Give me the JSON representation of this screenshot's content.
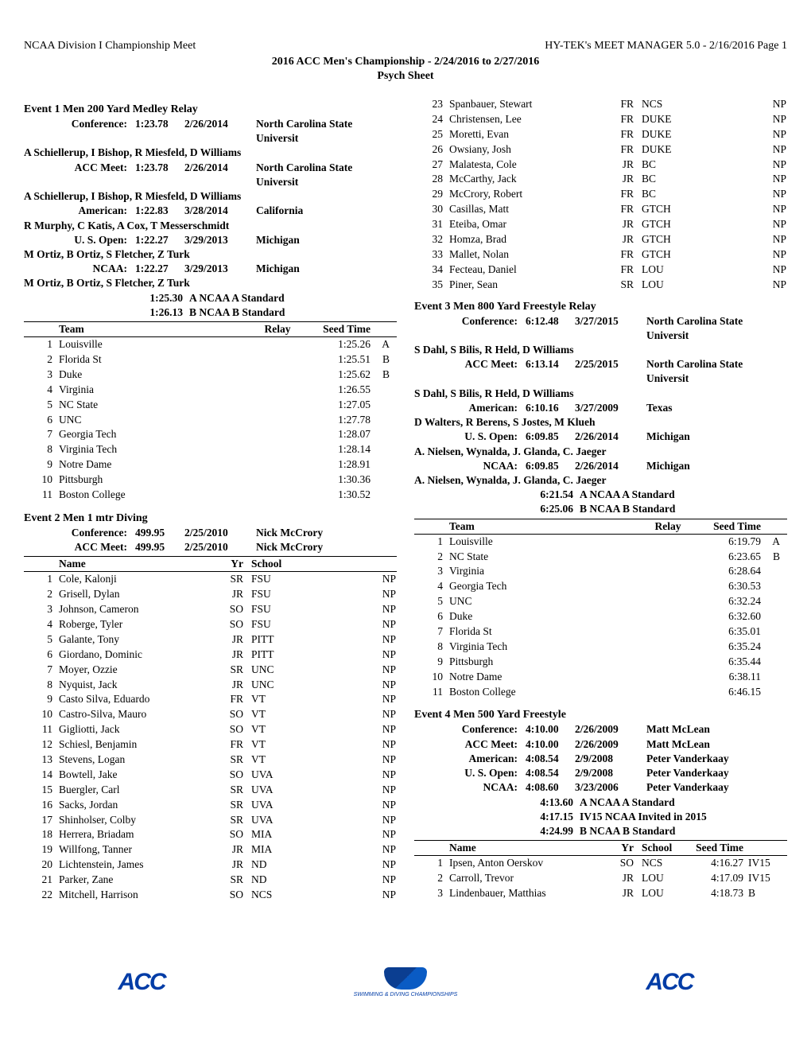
{
  "header": {
    "left": "NCAA Division I Championship Meet",
    "right": "HY-TEK's MEET MANAGER 5.0 - 2/16/2016  Page 1",
    "center": "2016 ACC Men's Championship - 2/24/2016 to 2/27/2016",
    "sub": "Psych Sheet"
  },
  "event1": {
    "title": "Event  1   Men 200 Yard Medley Relay",
    "records": [
      {
        "label": "Conference:",
        "time": "1:23.78",
        "date": "2/26/2014",
        "holder": "North Carolina State Universit",
        "swimmers": "A Schiellerup, I Bishop, R Miesfeld, D Williams"
      },
      {
        "label": "ACC Meet:",
        "time": "1:23.78",
        "date": "2/26/2014",
        "holder": "North Carolina State Universit",
        "swimmers": "A Schiellerup, I Bishop, R Miesfeld, D Williams"
      },
      {
        "label": "American:",
        "time": "1:22.83",
        "date": "3/28/2014",
        "holder": "California",
        "swimmers": "R Murphy, C Katis, A Cox, T Messerschmidt"
      },
      {
        "label": "U. S. Open:",
        "time": "1:22.27",
        "date": "3/29/2013",
        "holder": "Michigan",
        "swimmers": "M Ortiz, B Ortiz, S Fletcher, Z Turk"
      },
      {
        "label": "NCAA:",
        "time": "1:22.27",
        "date": "3/29/2013",
        "holder": "Michigan",
        "swimmers": "M Ortiz, B Ortiz, S Fletcher, Z Turk"
      }
    ],
    "standards": [
      {
        "time": "1:25.30",
        "label": "A NCAA A Standard"
      },
      {
        "time": "1:26.13",
        "label": "B NCAA B Standard"
      }
    ],
    "thead": {
      "team": "Team",
      "relay": "Relay",
      "seed": "Seed Time"
    },
    "rows": [
      {
        "pl": "1",
        "team": "Louisville",
        "seed": "1:25.26",
        "flag": "A"
      },
      {
        "pl": "2",
        "team": "Florida St",
        "seed": "1:25.51",
        "flag": "B"
      },
      {
        "pl": "3",
        "team": "Duke",
        "seed": "1:25.62",
        "flag": "B"
      },
      {
        "pl": "4",
        "team": "Virginia",
        "seed": "1:26.55",
        "flag": ""
      },
      {
        "pl": "5",
        "team": "NC State",
        "seed": "1:27.05",
        "flag": ""
      },
      {
        "pl": "6",
        "team": "UNC",
        "seed": "1:27.78",
        "flag": ""
      },
      {
        "pl": "7",
        "team": "Georgia Tech",
        "seed": "1:28.07",
        "flag": ""
      },
      {
        "pl": "8",
        "team": "Virginia Tech",
        "seed": "1:28.14",
        "flag": ""
      },
      {
        "pl": "9",
        "team": "Notre Dame",
        "seed": "1:28.91",
        "flag": ""
      },
      {
        "pl": "10",
        "team": "Pittsburgh",
        "seed": "1:30.36",
        "flag": ""
      },
      {
        "pl": "11",
        "team": "Boston College",
        "seed": "1:30.52",
        "flag": ""
      }
    ]
  },
  "event2": {
    "title": "Event  2   Men 1 mtr Diving",
    "records": [
      {
        "label": "Conference:",
        "time": "499.95",
        "date": "2/25/2010",
        "holder": "Nick McCrory"
      },
      {
        "label": "ACC Meet:",
        "time": "499.95",
        "date": "2/25/2010",
        "holder": "Nick McCrory"
      }
    ],
    "thead": {
      "name": "Name",
      "yr": "Yr",
      "school": "School",
      "seed": ""
    },
    "rows": [
      {
        "pl": "1",
        "name": "Cole, Kalonji",
        "yr": "SR",
        "school": "FSU",
        "seed": "NP"
      },
      {
        "pl": "2",
        "name": "Grisell, Dylan",
        "yr": "JR",
        "school": "FSU",
        "seed": "NP"
      },
      {
        "pl": "3",
        "name": "Johnson, Cameron",
        "yr": "SO",
        "school": "FSU",
        "seed": "NP"
      },
      {
        "pl": "4",
        "name": "Roberge, Tyler",
        "yr": "SO",
        "school": "FSU",
        "seed": "NP"
      },
      {
        "pl": "5",
        "name": "Galante, Tony",
        "yr": "JR",
        "school": "PITT",
        "seed": "NP"
      },
      {
        "pl": "6",
        "name": "Giordano, Dominic",
        "yr": "JR",
        "school": "PITT",
        "seed": "NP"
      },
      {
        "pl": "7",
        "name": "Moyer, Ozzie",
        "yr": "SR",
        "school": "UNC",
        "seed": "NP"
      },
      {
        "pl": "8",
        "name": "Nyquist, Jack",
        "yr": "JR",
        "school": "UNC",
        "seed": "NP"
      },
      {
        "pl": "9",
        "name": "Casto Silva, Eduardo",
        "yr": "FR",
        "school": "VT",
        "seed": "NP"
      },
      {
        "pl": "10",
        "name": "Castro-Silva, Mauro",
        "yr": "SO",
        "school": "VT",
        "seed": "NP"
      },
      {
        "pl": "11",
        "name": "Gigliotti, Jack",
        "yr": "SO",
        "school": "VT",
        "seed": "NP"
      },
      {
        "pl": "12",
        "name": "Schiesl, Benjamin",
        "yr": "FR",
        "school": "VT",
        "seed": "NP"
      },
      {
        "pl": "13",
        "name": "Stevens, Logan",
        "yr": "SR",
        "school": "VT",
        "seed": "NP"
      },
      {
        "pl": "14",
        "name": "Bowtell, Jake",
        "yr": "SO",
        "school": "UVA",
        "seed": "NP"
      },
      {
        "pl": "15",
        "name": "Buergler, Carl",
        "yr": "SR",
        "school": "UVA",
        "seed": "NP"
      },
      {
        "pl": "16",
        "name": "Sacks, Jordan",
        "yr": "SR",
        "school": "UVA",
        "seed": "NP"
      },
      {
        "pl": "17",
        "name": "Shinholser, Colby",
        "yr": "SR",
        "school": "UVA",
        "seed": "NP"
      },
      {
        "pl": "18",
        "name": "Herrera, Briadam",
        "yr": "SO",
        "school": "MIA",
        "seed": "NP"
      },
      {
        "pl": "19",
        "name": "Willfong, Tanner",
        "yr": "JR",
        "school": "MIA",
        "seed": "NP"
      },
      {
        "pl": "20",
        "name": "Lichtenstein, James",
        "yr": "JR",
        "school": "ND",
        "seed": "NP"
      },
      {
        "pl": "21",
        "name": "Parker, Zane",
        "yr": "SR",
        "school": "ND",
        "seed": "NP"
      },
      {
        "pl": "22",
        "name": "Mitchell, Harrison",
        "yr": "SO",
        "school": "NCS",
        "seed": "NP"
      }
    ]
  },
  "event2cont": {
    "rows": [
      {
        "pl": "23",
        "name": "Spanbauer, Stewart",
        "yr": "FR",
        "school": "NCS",
        "seed": "NP"
      },
      {
        "pl": "24",
        "name": "Christensen, Lee",
        "yr": "FR",
        "school": "DUKE",
        "seed": "NP"
      },
      {
        "pl": "25",
        "name": "Moretti, Evan",
        "yr": "FR",
        "school": "DUKE",
        "seed": "NP"
      },
      {
        "pl": "26",
        "name": "Owsiany, Josh",
        "yr": "FR",
        "school": "DUKE",
        "seed": "NP"
      },
      {
        "pl": "27",
        "name": "Malatesta, Cole",
        "yr": "JR",
        "school": "BC",
        "seed": "NP"
      },
      {
        "pl": "28",
        "name": "McCarthy, Jack",
        "yr": "JR",
        "school": "BC",
        "seed": "NP"
      },
      {
        "pl": "29",
        "name": "McCrory, Robert",
        "yr": "FR",
        "school": "BC",
        "seed": "NP"
      },
      {
        "pl": "30",
        "name": "Casillas, Matt",
        "yr": "FR",
        "school": "GTCH",
        "seed": "NP"
      },
      {
        "pl": "31",
        "name": "Eteiba, Omar",
        "yr": "JR",
        "school": "GTCH",
        "seed": "NP"
      },
      {
        "pl": "32",
        "name": "Homza, Brad",
        "yr": "JR",
        "school": "GTCH",
        "seed": "NP"
      },
      {
        "pl": "33",
        "name": "Mallet, Nolan",
        "yr": "FR",
        "school": "GTCH",
        "seed": "NP"
      },
      {
        "pl": "34",
        "name": "Fecteau, Daniel",
        "yr": "FR",
        "school": "LOU",
        "seed": "NP"
      },
      {
        "pl": "35",
        "name": "Piner, Sean",
        "yr": "SR",
        "school": "LOU",
        "seed": "NP"
      }
    ]
  },
  "event3": {
    "title": "Event  3   Men 800 Yard Freestyle Relay",
    "records": [
      {
        "label": "Conference:",
        "time": "6:12.48",
        "date": "3/27/2015",
        "holder": "North Carolina State Universit",
        "swimmers": "S Dahl, S Bilis, R Held, D Williams"
      },
      {
        "label": "ACC Meet:",
        "time": "6:13.14",
        "date": "2/25/2015",
        "holder": "North Carolina State Universit",
        "swimmers": "S Dahl, S Bilis, R Held, D Williams"
      },
      {
        "label": "American:",
        "time": "6:10.16",
        "date": "3/27/2009",
        "holder": "Texas",
        "swimmers": "D Walters, R Berens, S Jostes, M Klueh"
      },
      {
        "label": "U. S. Open:",
        "time": "6:09.85",
        "date": "2/26/2014",
        "holder": "Michigan",
        "swimmers": "A. Nielsen, Wynalda, J. Glanda, C. Jaeger"
      },
      {
        "label": "NCAA:",
        "time": "6:09.85",
        "date": "2/26/2014",
        "holder": "Michigan",
        "swimmers": "A. Nielsen, Wynalda, J. Glanda, C. Jaeger"
      }
    ],
    "standards": [
      {
        "time": "6:21.54",
        "label": "A NCAA A Standard"
      },
      {
        "time": "6:25.06",
        "label": "B NCAA B Standard"
      }
    ],
    "thead": {
      "team": "Team",
      "relay": "Relay",
      "seed": "Seed Time"
    },
    "rows": [
      {
        "pl": "1",
        "team": "Louisville",
        "seed": "6:19.79",
        "flag": "A"
      },
      {
        "pl": "2",
        "team": "NC State",
        "seed": "6:23.65",
        "flag": "B"
      },
      {
        "pl": "3",
        "team": "Virginia",
        "seed": "6:28.64",
        "flag": ""
      },
      {
        "pl": "4",
        "team": "Georgia Tech",
        "seed": "6:30.53",
        "flag": ""
      },
      {
        "pl": "5",
        "team": "UNC",
        "seed": "6:32.24",
        "flag": ""
      },
      {
        "pl": "6",
        "team": "Duke",
        "seed": "6:32.60",
        "flag": ""
      },
      {
        "pl": "7",
        "team": "Florida St",
        "seed": "6:35.01",
        "flag": ""
      },
      {
        "pl": "8",
        "team": "Virginia Tech",
        "seed": "6:35.24",
        "flag": ""
      },
      {
        "pl": "9",
        "team": "Pittsburgh",
        "seed": "6:35.44",
        "flag": ""
      },
      {
        "pl": "10",
        "team": "Notre Dame",
        "seed": "6:38.11",
        "flag": ""
      },
      {
        "pl": "11",
        "team": "Boston College",
        "seed": "6:46.15",
        "flag": ""
      }
    ]
  },
  "event4": {
    "title": "Event  4   Men 500 Yard Freestyle",
    "records": [
      {
        "label": "Conference:",
        "time": "4:10.00",
        "date": "2/26/2009",
        "holder": "Matt McLean"
      },
      {
        "label": "ACC Meet:",
        "time": "4:10.00",
        "date": "2/26/2009",
        "holder": "Matt McLean"
      },
      {
        "label": "American:",
        "time": "4:08.54",
        "date": "2/9/2008",
        "holder": "Peter Vanderkaay"
      },
      {
        "label": "U. S. Open:",
        "time": "4:08.54",
        "date": "2/9/2008",
        "holder": "Peter Vanderkaay"
      },
      {
        "label": "NCAA:",
        "time": "4:08.60",
        "date": "3/23/2006",
        "holder": "Peter Vanderkaay"
      }
    ],
    "standards": [
      {
        "time": "4:13.60",
        "label": "A NCAA A Standard"
      },
      {
        "time": "4:17.15",
        "label": "IV15 NCAA Invited in 2015"
      },
      {
        "time": "4:24.99",
        "label": "B NCAA B Standard"
      }
    ],
    "thead": {
      "name": "Name",
      "yr": "Yr",
      "school": "School",
      "seed": "Seed Time"
    },
    "rows": [
      {
        "pl": "1",
        "name": "Ipsen, Anton Oerskov",
        "yr": "SO",
        "school": "NCS",
        "seed": "4:16.27",
        "flag": "IV15"
      },
      {
        "pl": "2",
        "name": "Carroll, Trevor",
        "yr": "JR",
        "school": "LOU",
        "seed": "4:17.09",
        "flag": "IV15"
      },
      {
        "pl": "3",
        "name": "Lindenbauer, Matthias",
        "yr": "JR",
        "school": "LOU",
        "seed": "4:18.73",
        "flag": "B"
      }
    ]
  },
  "footer": {
    "acc": "ACC",
    "banner": "SWIMMING & DIVING CHAMPIONSHIPS"
  }
}
